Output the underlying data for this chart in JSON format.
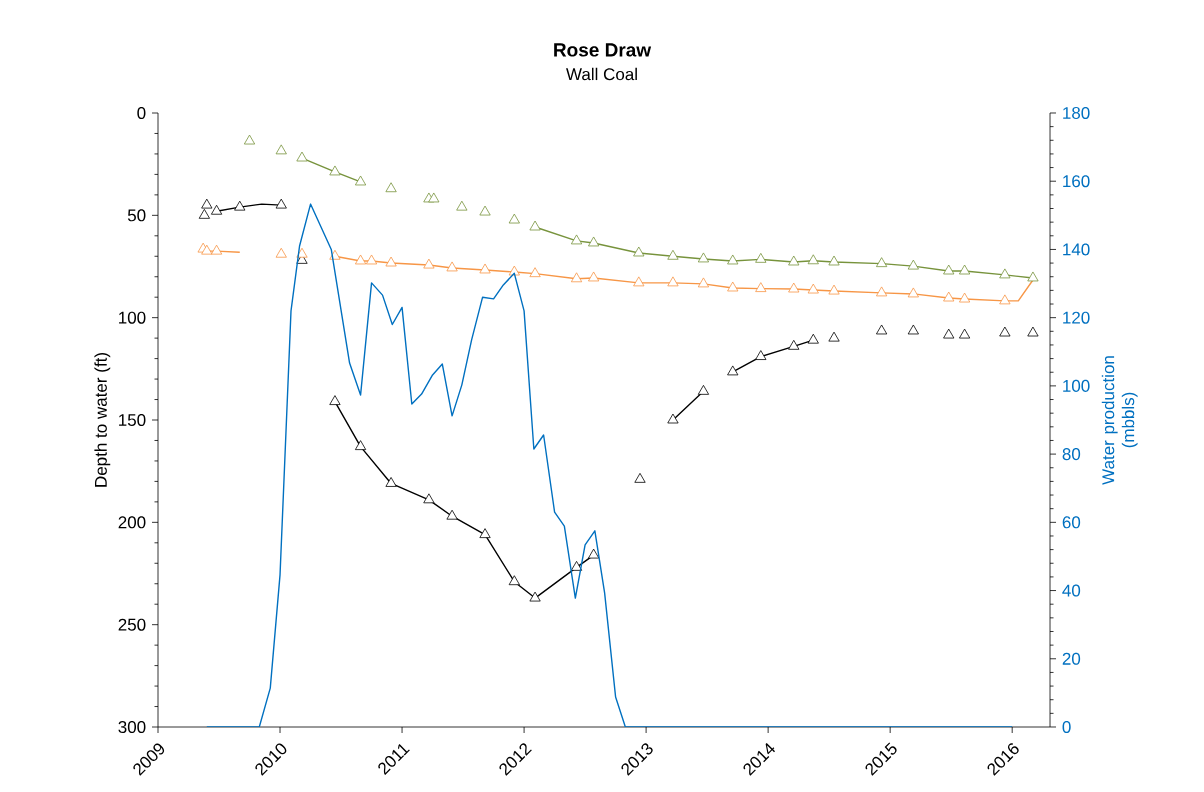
{
  "chart_data": {
    "type": "line",
    "title": "Rose Draw",
    "subtitle": "Wall Coal",
    "ylabel": "Depth to water (ft)",
    "y2label": "Water production (mbbls)",
    "xlim": [
      2009,
      2016.31
    ],
    "xticks": [
      2009,
      2010,
      2011,
      2012,
      2013,
      2014,
      2015,
      2016
    ],
    "ylim": [
      300,
      0
    ],
    "yticks": [
      0,
      50,
      100,
      150,
      200,
      250,
      300
    ],
    "y2lim": [
      0,
      180
    ],
    "y2ticks": [
      0,
      20,
      40,
      60,
      80,
      100,
      120,
      140,
      160,
      180
    ],
    "grid": false,
    "legend": false,
    "series": [
      {
        "color": "#000000",
        "line_style": "solid",
        "x": [
          2009.48,
          2009.67,
          2009.85,
          2010.01,
          2010.2,
          2010.45,
          2010.66,
          2010.91,
          2011.22,
          2011.41,
          2011.68,
          2011.92,
          2012.09,
          2012.43,
          2012.57,
          2012.9,
          2013.22,
          2013.47,
          2013.6,
          2013.71,
          2013.94,
          2014.21,
          2014.37
        ],
        "values": [
          48,
          46,
          44.5,
          45,
          null,
          141,
          163,
          181,
          189,
          197,
          206,
          229,
          237,
          222,
          216,
          null,
          150,
          136,
          null,
          126.5,
          119,
          114,
          111
        ]
      },
      {
        "type": "scatter",
        "color": "#000000",
        "marker": "triangle",
        "x": [
          2009.38,
          2009.4,
          2009.48,
          2009.67,
          2010.01,
          2010.18,
          2010.45,
          2010.66,
          2010.91,
          2011.22,
          2011.41,
          2011.68,
          2011.92,
          2012.09,
          2012.43,
          2012.57,
          2012.95,
          2013.22,
          2013.47,
          2013.71,
          2013.94,
          2014.21,
          2014.37,
          2014.54,
          2014.93,
          2015.19,
          2015.48,
          2015.61,
          2015.94,
          2016.17
        ],
        "values": [
          50,
          45,
          48,
          46,
          45,
          72,
          141,
          163,
          181,
          189,
          197,
          206,
          229,
          237,
          222,
          216,
          179,
          150,
          136,
          126.5,
          119,
          114,
          111,
          110,
          106.5,
          106.5,
          108.5,
          108.5,
          107.5,
          107.5
        ]
      },
      {
        "color": "#77933c",
        "line_style": "solid",
        "x": [
          2010.18,
          2010.45,
          2010.66,
          2011.4,
          2012.09,
          2012.43,
          2012.57,
          2012.94,
          2013.22,
          2013.47,
          2013.71,
          2013.94,
          2014.21,
          2014.37,
          2014.54,
          2014.93,
          2015.19,
          2015.48,
          2015.61,
          2015.94,
          2016.17
        ],
        "values": [
          22,
          28.8,
          33.7,
          null,
          55.7,
          62.5,
          63.5,
          68.4,
          70,
          71.3,
          72.3,
          71.5,
          72.8,
          72.2,
          72.8,
          73.6,
          74.8,
          77.2,
          77.2,
          79.1,
          80.6
        ]
      },
      {
        "type": "scatter",
        "color": "#77933c",
        "marker": "triangle",
        "x": [
          2009.75,
          2010.01,
          2010.18,
          2010.45,
          2010.66,
          2010.91,
          2011.22,
          2011.26,
          2011.49,
          2011.68,
          2011.92,
          2012.09,
          2012.43,
          2012.57,
          2012.94,
          2013.22,
          2013.47,
          2013.71,
          2013.94,
          2014.21,
          2014.37,
          2014.54,
          2014.93,
          2015.19,
          2015.48,
          2015.61,
          2015.94,
          2016.17
        ],
        "values": [
          13.7,
          18.5,
          22,
          28.8,
          33.7,
          37,
          42,
          42,
          46,
          48.4,
          52.3,
          55.7,
          62.5,
          63.5,
          68.4,
          70,
          71.3,
          72.3,
          71.5,
          72.8,
          72.2,
          72.8,
          73.6,
          74.8,
          77.2,
          77.2,
          79.1,
          80.6
        ]
      },
      {
        "color": "#f79646",
        "line_style": "solid",
        "x": [
          2009.4,
          2009.48,
          2009.67,
          2010.0,
          2010.45,
          2010.66,
          2010.75,
          2010.91,
          2011.22,
          2011.41,
          2011.68,
          2011.92,
          2012.09,
          2012.43,
          2012.57,
          2012.94,
          2013.22,
          2013.47,
          2013.71,
          2013.94,
          2014.21,
          2014.37,
          2014.54,
          2014.93,
          2015.19,
          2015.48,
          2015.61,
          2015.94,
          2016.05,
          2016.17
        ],
        "values": [
          67.5,
          67.5,
          68,
          null,
          70,
          72.3,
          72.3,
          73.3,
          74.3,
          75.7,
          76.7,
          77.7,
          78.5,
          81,
          80.6,
          83,
          83,
          83.5,
          85.5,
          85.8,
          86,
          86.5,
          87,
          87.9,
          88.4,
          90.4,
          90.9,
          91.8,
          91.8,
          81.6
        ]
      },
      {
        "type": "scatter",
        "color": "#f79646",
        "marker": "triangle",
        "x": [
          2009.37,
          2009.4,
          2009.48,
          2010.01,
          2010.18,
          2010.45,
          2010.66,
          2010.75,
          2010.91,
          2011.22,
          2011.41,
          2011.68,
          2011.92,
          2012.09,
          2012.43,
          2012.57,
          2012.94,
          2013.22,
          2013.47,
          2013.71,
          2013.94,
          2014.21,
          2014.37,
          2014.54,
          2014.93,
          2015.19,
          2015.48,
          2015.61,
          2015.94
        ],
        "values": [
          66.5,
          67.5,
          67.5,
          69,
          69,
          70,
          72.3,
          72.3,
          73.3,
          74.3,
          75.7,
          76.7,
          77.7,
          78.5,
          81,
          80.6,
          83,
          83,
          83.5,
          85.5,
          85.8,
          86,
          86.5,
          87,
          87.9,
          88.4,
          90.4,
          90.9,
          91.8
        ]
      },
      {
        "color": "#0070c0",
        "axis": "y2",
        "line_style": "solid",
        "x": [
          2009.4,
          2009.83,
          2009.92,
          2010.0,
          2010.09,
          2010.16,
          2010.25,
          2010.42,
          2010.57,
          2010.66,
          2010.75,
          2010.84,
          2010.92,
          2011.0,
          2011.08,
          2011.16,
          2011.25,
          2011.33,
          2011.41,
          2011.49,
          2011.57,
          2011.66,
          2011.75,
          2011.83,
          2011.92,
          2012.0,
          2012.08,
          2012.16,
          2012.25,
          2012.33,
          2012.42,
          2012.5,
          2012.58,
          2012.66,
          2012.75,
          2012.83,
          2016.0
        ],
        "values": [
          0,
          0,
          11.4,
          44.6,
          122,
          141,
          153.3,
          140,
          106.7,
          97.3,
          130.2,
          126.6,
          118,
          123,
          94.7,
          97.6,
          103.2,
          106.4,
          91.2,
          100.3,
          113.5,
          126,
          125.5,
          129.6,
          133,
          122,
          81.5,
          85.6,
          63,
          58.9,
          37.8,
          53.4,
          57.5,
          39.3,
          8.8,
          0,
          0
        ]
      }
    ]
  }
}
